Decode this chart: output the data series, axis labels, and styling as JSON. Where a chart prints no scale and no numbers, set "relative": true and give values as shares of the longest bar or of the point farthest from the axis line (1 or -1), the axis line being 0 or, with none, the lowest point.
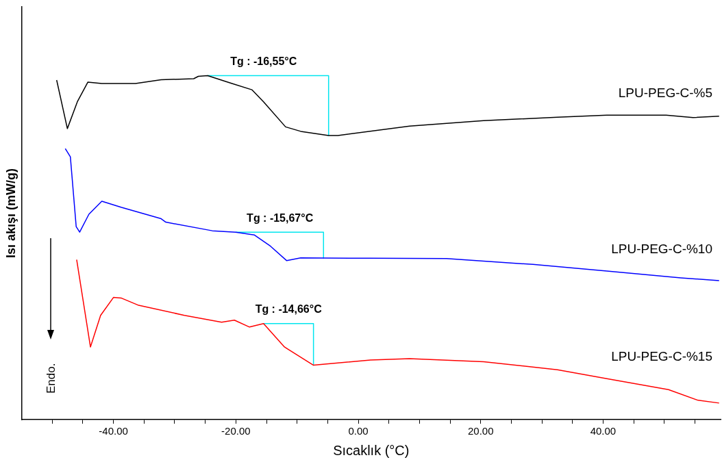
{
  "chart_data": {
    "type": "line",
    "relative": true,
    "xlabel": "Sıcaklık (°C)",
    "ylabel": "Isı akışı (mW/g)",
    "xlim": [
      -55.0,
      59.2
    ],
    "xticks": [
      {
        "value": -50,
        "label": null
      },
      {
        "value": -45,
        "label": null
      },
      {
        "value": -40,
        "label": "-40.00"
      },
      {
        "value": -35,
        "label": null
      },
      {
        "value": -30,
        "label": null
      },
      {
        "value": -25,
        "label": null
      },
      {
        "value": -20,
        "label": "-20.00"
      },
      {
        "value": -15,
        "label": null
      },
      {
        "value": -10,
        "label": null
      },
      {
        "value": -5,
        "label": null
      },
      {
        "value": 0,
        "label": "0.00"
      },
      {
        "value": 5,
        "label": null
      },
      {
        "value": 10,
        "label": null
      },
      {
        "value": 15,
        "label": null
      },
      {
        "value": 20,
        "label": "20.00"
      },
      {
        "value": 25,
        "label": null
      },
      {
        "value": 30,
        "label": null
      },
      {
        "value": 35,
        "label": null
      },
      {
        "value": 40,
        "label": "40.00"
      },
      {
        "value": 45,
        "label": null
      },
      {
        "value": 50,
        "label": null
      },
      {
        "value": 55,
        "label": null
      }
    ],
    "grid": false,
    "legend": false,
    "marker": "none",
    "line_style": "solid",
    "series": [
      {
        "name": "LPU-PEG-C-%5",
        "color": "#000000",
        "x": [
          -49.28,
          -47.53,
          -45.9,
          -44.19,
          -41.9,
          -36.4,
          -32.21,
          -26.89,
          -26.13,
          -24.61,
          -20.81,
          -17.39,
          -15.48,
          -11.88,
          -9.41,
          -4.85,
          -3.33,
          8.38,
          20.47,
          32.55,
          40.61,
          50.29,
          54.68,
          58.95
        ],
        "values": [
          0.987,
          0.846,
          0.924,
          0.981,
          0.977,
          0.977,
          0.988,
          0.991,
          0.998,
          1.0,
          0.978,
          0.959,
          0.924,
          0.851,
          0.838,
          0.826,
          0.826,
          0.853,
          0.869,
          0.879,
          0.885,
          0.885,
          0.878,
          0.882
        ]
      },
      {
        "name": "LPU-PEG-C-%10",
        "color": "#0000ff",
        "x": [
          -47.87,
          -47.04,
          -46.09,
          -45.52,
          -44.01,
          -41.9,
          -38.68,
          -32.21,
          -31.45,
          -23.86,
          -20.05,
          -17.01,
          -14.34,
          -11.69,
          -9.41,
          2.0,
          14.42,
          28.53,
          40.61,
          52.7,
          58.95
        ],
        "values": [
          0.788,
          0.764,
          0.561,
          0.545,
          0.597,
          0.635,
          0.617,
          0.584,
          0.574,
          0.549,
          0.545,
          0.537,
          0.504,
          0.462,
          0.47,
          0.469,
          0.468,
          0.451,
          0.432,
          0.412,
          0.404
        ]
      },
      {
        "name": "LPU-PEG-C-%15",
        "color": "#ff0000",
        "x": [
          -46.01,
          -43.76,
          -42.1,
          -40.0,
          -38.68,
          -36.01,
          -28.42,
          -22.33,
          -20.24,
          -17.77,
          -15.48,
          -12.06,
          -7.32,
          2.0,
          8.38,
          20.47,
          32.55,
          40.61,
          50.68,
          55.52,
          58.95
        ],
        "values": [
          0.465,
          0.211,
          0.303,
          0.355,
          0.353,
          0.333,
          0.303,
          0.283,
          0.289,
          0.269,
          0.279,
          0.211,
          0.158,
          0.173,
          0.177,
          0.168,
          0.145,
          0.119,
          0.087,
          0.056,
          0.048
        ]
      },
      {
        "color": "#00e5ee",
        "x": [
          -24.61,
          -4.85,
          -4.85
        ],
        "values": [
          1.0,
          1.0,
          0.826
        ]
      },
      {
        "color": "#00e5ee",
        "x": [
          -20.05,
          -5.68,
          -5.68
        ],
        "values": [
          0.545,
          0.545,
          0.469
        ]
      },
      {
        "color": "#00e5ee",
        "x": [
          -15.48,
          -7.32,
          -7.32
        ],
        "values": [
          0.279,
          0.279,
          0.158
        ]
      }
    ],
    "annotations": [
      {
        "text": "Tg : -16,55°C",
        "x": -15.48,
        "y": 1.0
      },
      {
        "text": "Tg : -15,67°C",
        "x": -12.8,
        "y": 0.545
      },
      {
        "text": "Tg : -14,66°C",
        "x": -11.4,
        "y": 0.279
      },
      "Endo."
    ]
  }
}
